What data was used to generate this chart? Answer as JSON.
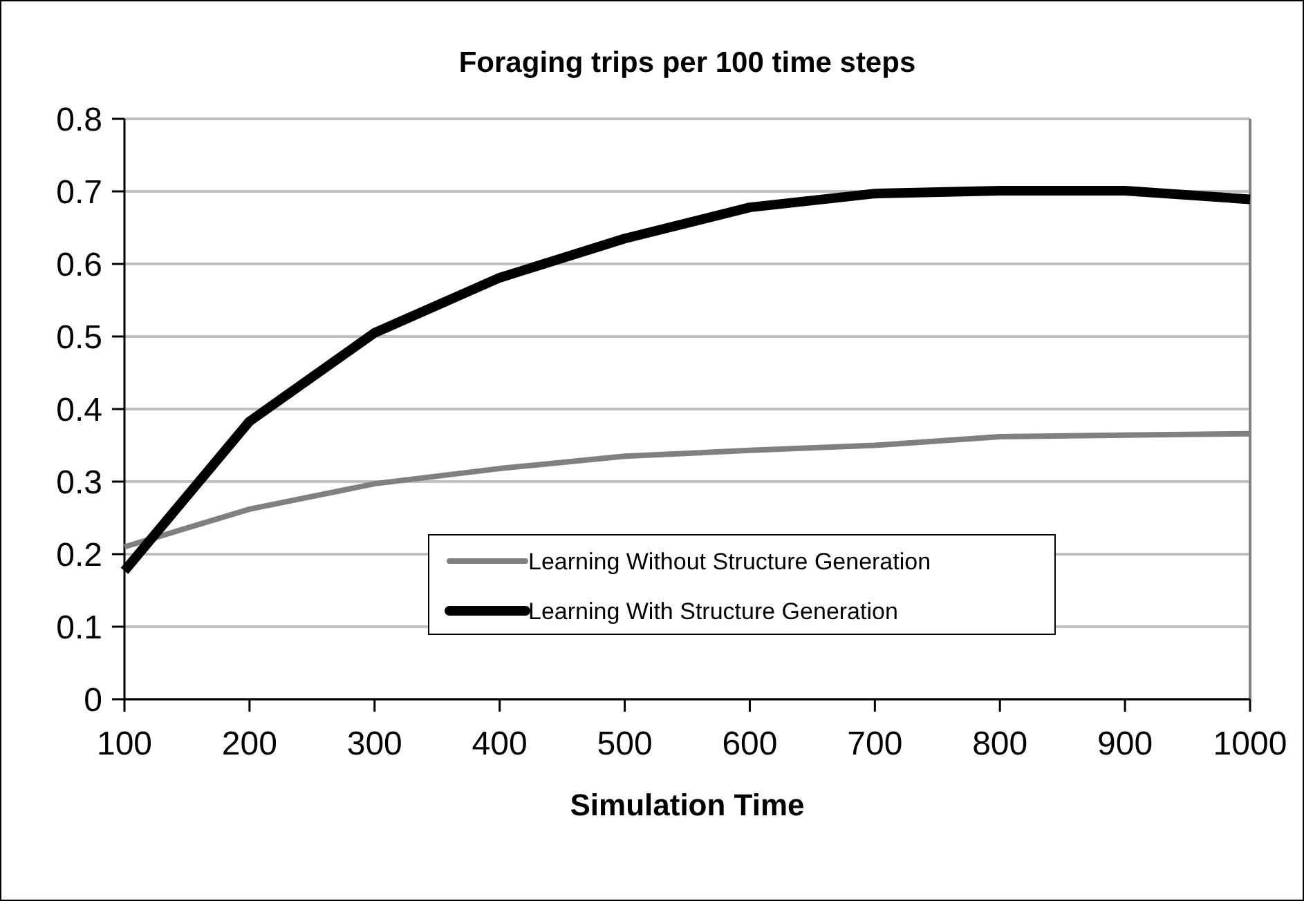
{
  "chart_data": {
    "type": "line",
    "title": "Foraging trips per 100 time steps",
    "xlabel": "Simulation Time",
    "x": [
      100,
      200,
      300,
      400,
      500,
      600,
      700,
      800,
      900,
      1000
    ],
    "series": [
      {
        "name": "Learning Without Structure Generation",
        "color": "#808080",
        "values": [
          0.21,
          0.262,
          0.297,
          0.318,
          0.335,
          0.343,
          0.35,
          0.362,
          0.364,
          0.366
        ]
      },
      {
        "name": "Learning With Structure Generation",
        "color": "#000000",
        "values": [
          0.177,
          0.383,
          0.505,
          0.581,
          0.635,
          0.678,
          0.697,
          0.701,
          0.701,
          0.689
        ]
      }
    ],
    "xlim": [
      100,
      1000
    ],
    "xticks": [
      100,
      200,
      300,
      400,
      500,
      600,
      700,
      800,
      900,
      1000
    ],
    "ylim": [
      0,
      0.8
    ],
    "yticks": [
      0,
      0.1,
      0.2,
      0.3,
      0.4,
      0.5,
      0.6,
      0.7,
      0.8
    ],
    "grid": "y",
    "legend": "bottom right",
    "marker": "none",
    "line_style": "solid"
  }
}
